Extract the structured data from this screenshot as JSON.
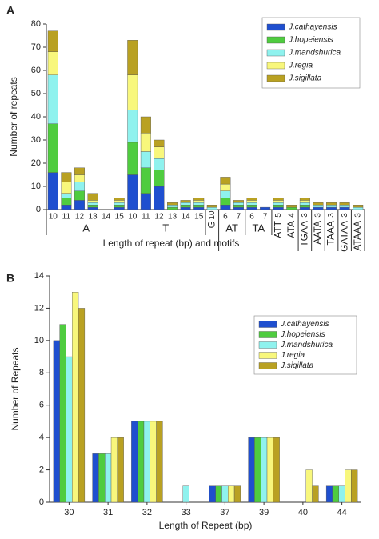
{
  "chart_data": [
    {
      "type": "bar",
      "stacked": true,
      "panel_label": "A",
      "xlabel": "Length of repeat (bp) and motifs",
      "ylabel": "Number of repeats",
      "groups": [
        {
          "label": "A",
          "categories": [
            "10",
            "11",
            "12",
            "13",
            "14",
            "15"
          ]
        },
        {
          "label": "T",
          "categories": [
            "10",
            "11",
            "12",
            "13",
            "14",
            "15"
          ]
        },
        {
          "label": "G",
          "categories": [
            "10"
          ]
        },
        {
          "label": "AT",
          "categories": [
            "6",
            "7"
          ]
        },
        {
          "label": "TA",
          "categories": [
            "6",
            "7"
          ]
        },
        {
          "label": "ATT",
          "categories": [
            "5"
          ]
        },
        {
          "label": "ATA",
          "categories": [
            "4"
          ]
        },
        {
          "label": "TGAA",
          "categories": [
            "3"
          ]
        },
        {
          "label": "AATA",
          "categories": [
            "3"
          ]
        },
        {
          "label": "TAAA",
          "categories": [
            "3"
          ]
        },
        {
          "label": "GATAA",
          "categories": [
            "3"
          ]
        },
        {
          "label": "ATAAA",
          "categories": [
            "3"
          ]
        }
      ],
      "series": [
        {
          "name": "J.cathayensis",
          "color": "#1f4fcf",
          "values": [
            16,
            2,
            4,
            1,
            0,
            1,
            15,
            7,
            10,
            0,
            1,
            1,
            0,
            2,
            1,
            1,
            1,
            1,
            0,
            1,
            1,
            1,
            1,
            0
          ]
        },
        {
          "name": "J.hopeiensis",
          "color": "#4fcc3f",
          "values": [
            21,
            3,
            4,
            1,
            0,
            1,
            14,
            11,
            7,
            1,
            1,
            1,
            0,
            3,
            1,
            1,
            0,
            1,
            1,
            1,
            0,
            0,
            0,
            0
          ]
        },
        {
          "name": "J.mandshurica",
          "color": "#8ff2ee",
          "values": [
            21,
            2,
            4,
            1,
            0,
            1,
            14,
            7,
            5,
            1,
            1,
            1,
            1,
            3,
            1,
            1,
            0,
            1,
            0,
            1,
            1,
            1,
            1,
            1
          ]
        },
        {
          "name": "J.regia",
          "color": "#f8f77c",
          "values": [
            10,
            5,
            3,
            1,
            0,
            1,
            15,
            8,
            5,
            0,
            0,
            1,
            0,
            3,
            0,
            1,
            0,
            1,
            0,
            1,
            0,
            0,
            0,
            0
          ]
        },
        {
          "name": "J.sigillata",
          "color": "#b9a122",
          "values": [
            9,
            4,
            3,
            3,
            0,
            1,
            15,
            7,
            3,
            1,
            1,
            1,
            1,
            3,
            1,
            1,
            0,
            1,
            1,
            1,
            1,
            1,
            1,
            1
          ]
        }
      ],
      "ylim": [
        0,
        80
      ],
      "yticks": [
        0,
        10,
        20,
        30,
        40,
        50,
        60,
        70,
        80
      ],
      "legend": "top-right"
    },
    {
      "type": "bar",
      "stacked": false,
      "panel_label": "B",
      "xlabel": "Length of Repeat (bp)",
      "ylabel": "Number of Repeats",
      "categories": [
        "30",
        "31",
        "32",
        "33",
        "37",
        "39",
        "40",
        "44"
      ],
      "series": [
        {
          "name": "J.cathayensis",
          "color": "#1f4fcf",
          "values": [
            10,
            3,
            5,
            0,
            1,
            4,
            0,
            1
          ]
        },
        {
          "name": "J.hopeiensis",
          "color": "#4fcc3f",
          "values": [
            11,
            3,
            5,
            0,
            1,
            4,
            0,
            1
          ]
        },
        {
          "name": "J.mandshurica",
          "color": "#8ff2ee",
          "values": [
            9,
            3,
            5,
            1,
            1,
            4,
            0,
            1
          ]
        },
        {
          "name": "J.regia",
          "color": "#f8f77c",
          "values": [
            13,
            4,
            5,
            0,
            1,
            4,
            2,
            2
          ]
        },
        {
          "name": "J.sigillata",
          "color": "#b9a122",
          "values": [
            12,
            4,
            5,
            0,
            1,
            4,
            1,
            2
          ]
        }
      ],
      "ylim": [
        0,
        14
      ],
      "yticks": [
        0,
        2,
        4,
        6,
        8,
        10,
        12,
        14
      ],
      "legend": "top-right"
    }
  ]
}
